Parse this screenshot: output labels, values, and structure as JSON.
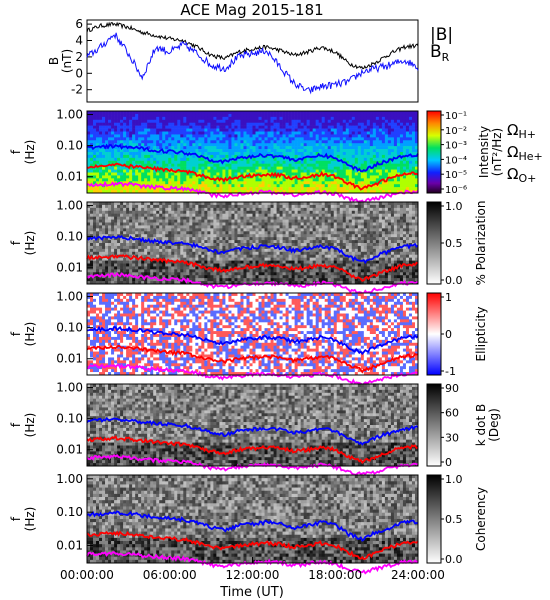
{
  "title": "ACE Mag 2015-181",
  "xlabel": "Time (UT)",
  "x_ticks": [
    "00:00:00",
    "06:00:00",
    "12:00:00",
    "18:00:00",
    "24:00:00"
  ],
  "colors": {
    "magnitude": "#000000",
    "radial": "#1010ff",
    "h_plus": "#0000ff",
    "he_plus": "#ff0000",
    "o_plus": "#ff00ff"
  },
  "chart_data": [
    {
      "type": "line",
      "panel": "field",
      "ylabel": "B",
      "yunit": "(nT)",
      "ylim": [
        -3.5,
        6.5
      ],
      "y_ticks": [
        "6",
        "4",
        "2",
        "0",
        "-2"
      ],
      "series": [
        {
          "name": "|B|",
          "x_hours": [
            0,
            1,
            2,
            3,
            4,
            5,
            6,
            7,
            8,
            9,
            10,
            11,
            12,
            13,
            14,
            15,
            16,
            17,
            18,
            19,
            20,
            21,
            22,
            23,
            24
          ],
          "values": [
            5.2,
            5.8,
            6.0,
            5.6,
            5.0,
            4.6,
            4.2,
            4.0,
            3.2,
            2.2,
            1.8,
            2.6,
            3.0,
            3.2,
            2.8,
            2.2,
            2.6,
            3.2,
            2.6,
            1.2,
            0.6,
            1.4,
            2.4,
            3.2,
            3.4
          ]
        },
        {
          "name": "B",
          "subscript": "R",
          "x_hours": [
            0,
            1,
            2,
            3,
            4,
            5,
            6,
            7,
            8,
            9,
            10,
            11,
            12,
            13,
            14,
            15,
            16,
            17,
            18,
            19,
            20,
            21,
            22,
            23,
            24
          ],
          "values": [
            2.0,
            3.2,
            4.8,
            2.4,
            -0.5,
            3.2,
            2.6,
            3.5,
            2.4,
            1.0,
            0.6,
            2.0,
            2.4,
            2.8,
            0.8,
            -1.2,
            -2.2,
            -1.6,
            -1.4,
            -1.0,
            0.2,
            0.6,
            1.0,
            1.6,
            0.8
          ]
        }
      ]
    },
    {
      "type": "heatmap",
      "panel": "power",
      "ylabel": "f",
      "yunit": "(Hz)",
      "y_ticks": [
        "1.00",
        "0.10",
        "0.01"
      ],
      "colorbar_label": "Intensity",
      "colorbar_unit": "(nT²/Hz)",
      "colorbar_ticks": [
        "10⁻¹",
        "10⁻²",
        "10⁻³",
        "10⁻⁴",
        "10⁻⁵",
        "10⁻⁶"
      ],
      "legend": [
        {
          "symbol": "Ω",
          "sub": "H+",
          "color": "#0000ff"
        },
        {
          "symbol": "Ω",
          "sub": "He+",
          "color": "#ff0000"
        },
        {
          "symbol": "Ω",
          "sub": "O+",
          "color": "#ff00ff"
        }
      ]
    },
    {
      "type": "heatmap",
      "panel": "polarization",
      "ylabel": "f",
      "yunit": "(Hz)",
      "y_ticks": [
        "1.00",
        "0.10",
        "0.01"
      ],
      "colorbar_label": "% Polarization",
      "colorbar_ticks": [
        "1.0",
        "0.5",
        "0.0"
      ]
    },
    {
      "type": "heatmap",
      "panel": "ellipticity",
      "ylabel": "f",
      "yunit": "(Hz)",
      "y_ticks": [
        "1.00",
        "0.10",
        "0.01"
      ],
      "colorbar_label": "Ellipticity",
      "colorbar_ticks": [
        "1",
        "0",
        "-1"
      ]
    },
    {
      "type": "heatmap",
      "panel": "kdotb",
      "ylabel": "f",
      "yunit": "(Hz)",
      "y_ticks": [
        "1.00",
        "0.10",
        "0.01"
      ],
      "colorbar_label": "k dot B",
      "colorbar_unit": "(Deg)",
      "colorbar_ticks": [
        "90",
        "60",
        "30",
        "0"
      ]
    },
    {
      "type": "heatmap",
      "panel": "coherency",
      "ylabel": "f",
      "yunit": "(Hz)",
      "y_ticks": [
        "1.00",
        "0.10",
        "0.01"
      ],
      "colorbar_label": "Coherency",
      "colorbar_ticks": [
        "1.0",
        "0.5",
        "0.0"
      ]
    }
  ],
  "gyrofrequency_lines": {
    "x_hours": [
      0,
      1,
      2,
      3,
      4,
      5,
      6,
      7,
      8,
      9,
      10,
      11,
      12,
      13,
      14,
      15,
      16,
      17,
      18,
      19,
      20,
      21,
      22,
      23,
      24
    ],
    "h_plus_hz": [
      0.085,
      0.09,
      0.095,
      0.09,
      0.08,
      0.07,
      0.065,
      0.06,
      0.05,
      0.035,
      0.03,
      0.04,
      0.045,
      0.05,
      0.045,
      0.035,
      0.04,
      0.05,
      0.04,
      0.022,
      0.015,
      0.025,
      0.035,
      0.048,
      0.052
    ],
    "he_plus_hz": [
      0.021,
      0.022,
      0.024,
      0.022,
      0.02,
      0.018,
      0.016,
      0.015,
      0.012,
      0.009,
      0.008,
      0.01,
      0.011,
      0.012,
      0.011,
      0.009,
      0.01,
      0.012,
      0.01,
      0.006,
      0.004,
      0.006,
      0.009,
      0.012,
      0.013
    ],
    "o_plus_hz": [
      0.0055,
      0.0057,
      0.006,
      0.0057,
      0.005,
      0.0046,
      0.0043,
      0.0041,
      0.0034,
      0.0026,
      0.0024,
      0.0028,
      0.0031,
      0.0033,
      0.003,
      0.0026,
      0.0028,
      0.0033,
      0.0028,
      0.0019,
      0.0016,
      0.002,
      0.0026,
      0.0032,
      0.0034
    ]
  }
}
